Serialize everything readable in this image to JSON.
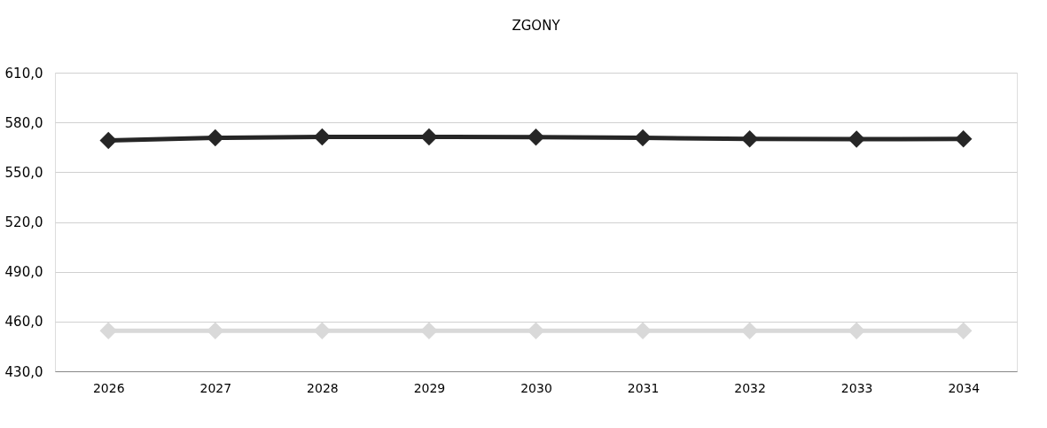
{
  "chart_data": {
    "type": "line",
    "title": "ZGONY",
    "categories": [
      "2026",
      "2027",
      "2028",
      "2029",
      "2030",
      "2031",
      "2032",
      "2033",
      "2034"
    ],
    "series": [
      {
        "color": "#262626",
        "values": [
          569.2,
          570.7,
          571.3,
          571.3,
          571.1,
          570.7,
          570.1,
          569.9,
          570.1
        ]
      },
      {
        "color": "#d9d9d9",
        "values": [
          454.5,
          454.5,
          454.5,
          454.5,
          454.5,
          454.5,
          454.5,
          454.5,
          454.5
        ]
      }
    ],
    "ylim": [
      430,
      610
    ],
    "yticks": [
      {
        "value": 430,
        "label": "430,0"
      },
      {
        "value": 460,
        "label": "460,0"
      },
      {
        "value": 490,
        "label": "490,0"
      },
      {
        "value": 520,
        "label": "520,0"
      },
      {
        "value": 550,
        "label": "550,0"
      },
      {
        "value": 580,
        "label": "580,0"
      },
      {
        "value": 610,
        "label": "610,0"
      }
    ],
    "grid": "y",
    "marker": "diamond",
    "line_style": "solid"
  }
}
